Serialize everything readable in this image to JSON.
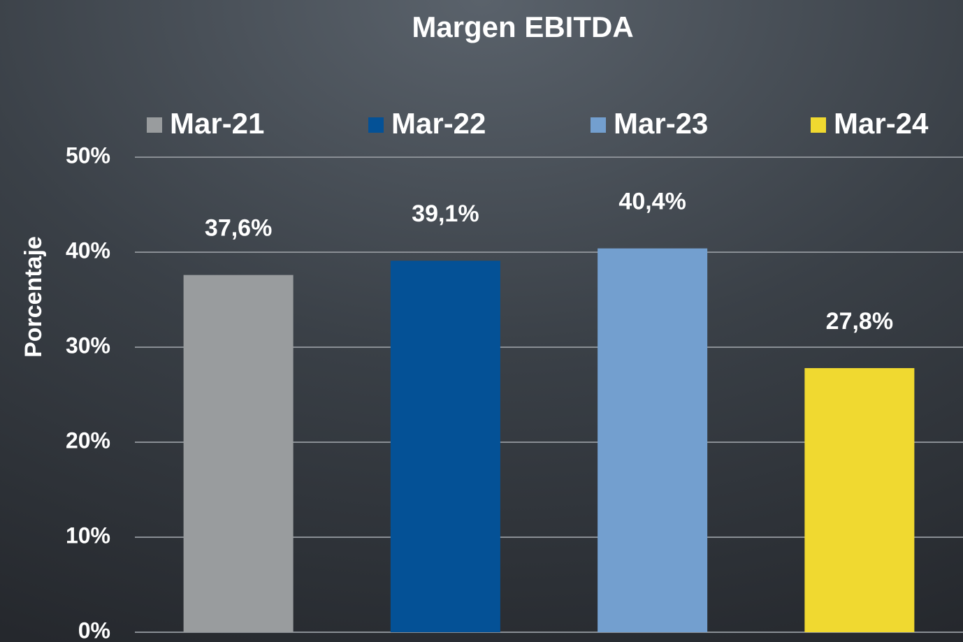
{
  "chart_data": {
    "type": "bar",
    "title": "Margen EBITDA",
    "y_label": "Porcentaje",
    "series": [
      {
        "name": "Mar-21",
        "color": "#999c9e",
        "values": [
          37.6
        ],
        "value_labels": [
          "37,6%"
        ]
      },
      {
        "name": "Mar-22",
        "color": "#045196",
        "values": [
          39.1
        ],
        "value_labels": [
          "39,1%"
        ]
      },
      {
        "name": "Mar-23",
        "color": "#739fcf",
        "values": [
          40.4
        ],
        "value_labels": [
          "40,4%"
        ]
      },
      {
        "name": "Mar-24",
        "color": "#f0d930",
        "values": [
          27.8
        ],
        "value_labels": [
          "27,8%"
        ]
      }
    ],
    "ylim": [
      0,
      50
    ],
    "yticks": [
      {
        "value": 0,
        "label": "0%"
      },
      {
        "value": 10,
        "label": "10%"
      },
      {
        "value": 20,
        "label": "20%"
      },
      {
        "value": 30,
        "label": "30%"
      },
      {
        "value": 40,
        "label": "40%"
      },
      {
        "value": 50,
        "label": "50%"
      }
    ],
    "grid": true,
    "legend": "top"
  }
}
